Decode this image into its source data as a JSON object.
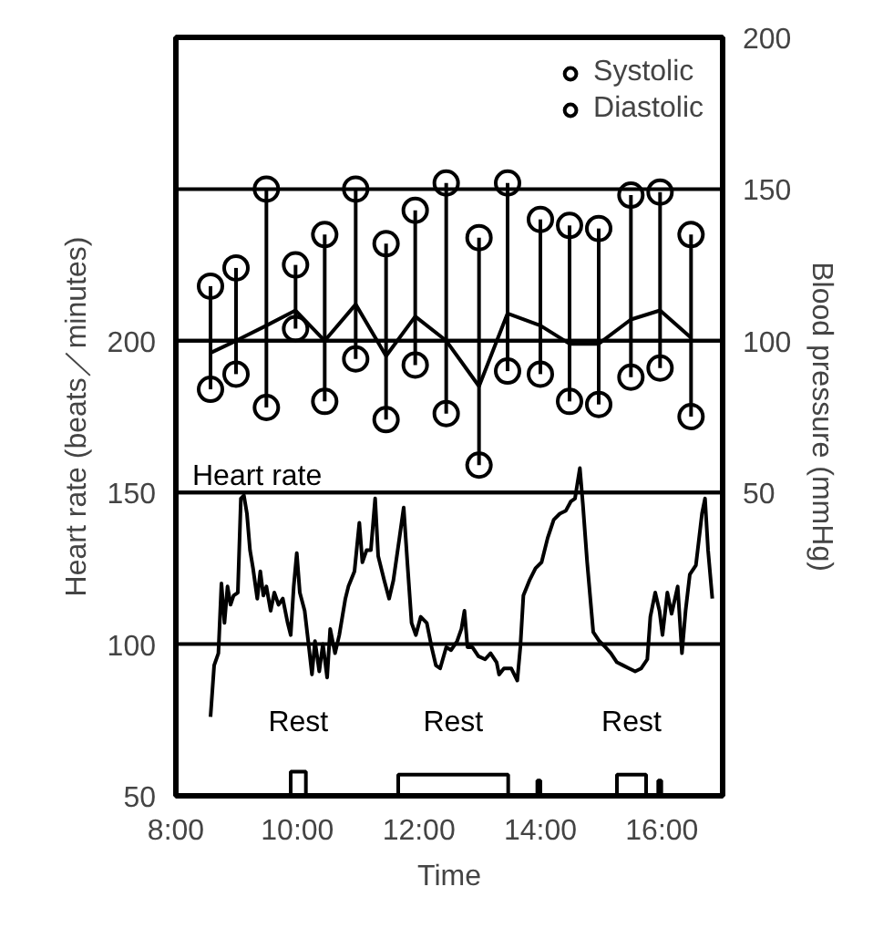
{
  "chart_data": {
    "type": "line",
    "xlabel": "Time",
    "ylabel": "Heart rate (beats／minutes)",
    "y2label": "Blood pressure (mmHg)",
    "xlim": [
      8,
      17
    ],
    "xticks": [
      {
        "value": 8,
        "label": "8:00"
      },
      {
        "value": 10,
        "label": "10:00"
      },
      {
        "value": 12,
        "label": "12:00"
      },
      {
        "value": 14,
        "label": "14:00"
      },
      {
        "value": 16,
        "label": "16:00"
      }
    ],
    "ylim": [
      50,
      300
    ],
    "yticks": [
      50,
      100,
      150,
      200
    ],
    "y2lim": [
      -50,
      200
    ],
    "y2ticks": [
      50,
      100,
      150,
      200
    ],
    "grid": "y",
    "legend": "top right",
    "annotations": [
      "Rest",
      "Rest",
      "Rest"
    ],
    "series": [
      {
        "name": "Systolic",
        "type": "scatter",
        "axis": "y2",
        "marker": "circle",
        "color": "#000000",
        "x": [
          8.57,
          8.99,
          9.49,
          9.97,
          10.45,
          10.96,
          11.46,
          11.94,
          12.45,
          12.99,
          13.46,
          14.0,
          14.48,
          14.96,
          15.49,
          15.97,
          16.48
        ],
        "values": [
          118,
          124,
          150,
          125,
          135,
          150,
          132,
          143,
          152,
          134,
          152,
          140,
          138,
          137,
          148,
          149,
          135
        ]
      },
      {
        "name": "Diastolic",
        "type": "scatter",
        "axis": "y2",
        "marker": "circle",
        "color": "#000000",
        "x": [
          8.57,
          8.99,
          9.49,
          9.97,
          10.45,
          10.96,
          11.46,
          11.94,
          12.45,
          12.99,
          13.46,
          14.0,
          14.48,
          14.96,
          15.49,
          15.97,
          16.48
        ],
        "values": [
          84,
          89,
          78,
          104,
          80,
          94,
          74,
          92,
          76,
          59,
          90,
          89,
          80,
          79,
          88,
          91,
          75
        ]
      },
      {
        "type": "line",
        "axis": "y2",
        "color": "#000000",
        "x": [
          8.57,
          8.99,
          9.49,
          9.97,
          10.45,
          10.96,
          11.46,
          11.94,
          12.45,
          12.99,
          13.46,
          14.0,
          14.48,
          14.96,
          15.49,
          15.97,
          16.48
        ],
        "values": [
          96,
          100,
          105,
          110,
          100,
          112,
          95,
          108,
          100,
          85,
          109,
          105,
          99,
          99,
          107,
          110,
          101
        ],
        "errors": [
          [
            84,
            118
          ],
          [
            89,
            124
          ],
          [
            78,
            150
          ],
          [
            104,
            125
          ],
          [
            80,
            135
          ],
          [
            94,
            150
          ],
          [
            74,
            132
          ],
          [
            92,
            143
          ],
          [
            76,
            152
          ],
          [
            59,
            134
          ],
          [
            90,
            152
          ],
          [
            89,
            140
          ],
          [
            80,
            138
          ],
          [
            79,
            137
          ],
          [
            88,
            148
          ],
          [
            91,
            149
          ],
          [
            75,
            135
          ]
        ]
      },
      {
        "name": "Heart rate",
        "color": "#000000",
        "x": [
          8.57,
          8.63,
          8.7,
          8.75,
          8.8,
          8.85,
          8.9,
          8.95,
          9.02,
          9.07,
          9.12,
          9.17,
          9.22,
          9.27,
          9.34,
          9.39,
          9.44,
          9.49,
          9.56,
          9.62,
          9.69,
          9.76,
          9.84,
          9.89,
          9.94,
          9.99,
          10.04,
          10.12,
          10.19,
          10.24,
          10.29,
          10.36,
          10.42,
          10.49,
          10.54,
          10.62,
          10.69,
          10.74,
          10.79,
          10.84,
          10.94,
          11.02,
          11.07,
          11.14,
          11.21,
          11.28,
          11.33,
          11.43,
          11.51,
          11.58,
          11.68,
          11.75,
          11.81,
          11.88,
          11.95,
          12.03,
          12.13,
          12.21,
          12.28,
          12.35,
          12.45,
          12.53,
          12.63,
          12.7,
          12.75,
          12.8,
          12.88,
          12.98,
          13.09,
          13.18,
          13.28,
          13.32,
          13.4,
          13.52,
          13.62,
          13.67,
          13.72,
          13.82,
          13.92,
          14.02,
          14.12,
          14.22,
          14.32,
          14.42,
          14.5,
          14.57,
          14.65,
          14.7,
          14.77,
          14.87,
          14.97,
          15.07,
          15.16,
          15.26,
          15.36,
          15.46,
          15.56,
          15.66,
          15.76,
          15.81,
          15.89,
          15.96,
          16.01,
          16.09,
          16.16,
          16.26,
          16.33,
          16.39,
          16.46,
          16.56,
          16.66,
          16.71,
          16.76,
          16.83
        ],
        "values": [
          76,
          93,
          97,
          120,
          107,
          119,
          113,
          116,
          117,
          148,
          149,
          143,
          131,
          125,
          115,
          124,
          116,
          119,
          111,
          117,
          113,
          115,
          107,
          103,
          119,
          130,
          117,
          111,
          99,
          90,
          101,
          91,
          100,
          89,
          105,
          97,
          103,
          109,
          115,
          119,
          124,
          140,
          127,
          131,
          131,
          148,
          129,
          121,
          115,
          121,
          135,
          145,
          127,
          107,
          103,
          109,
          107,
          99,
          93,
          92,
          99,
          98,
          101,
          105,
          111,
          99,
          99,
          96,
          95,
          97,
          94,
          90,
          92,
          92,
          88,
          99,
          116,
          121,
          125,
          127,
          135,
          141,
          143,
          144,
          147,
          148,
          158,
          146,
          127,
          104,
          101,
          99,
          97,
          94,
          93,
          92,
          91,
          92,
          95,
          109,
          117,
          111,
          103,
          117,
          110,
          119,
          97,
          111,
          123,
          126,
          143,
          148,
          131,
          115
        ]
      },
      {
        "type": "step",
        "color": "#000000",
        "x": [
          8,
          9.89,
          10.14,
          11.66,
          13.47,
          13.95,
          14.0,
          15.26,
          15.74,
          15.94,
          15.99,
          17
        ],
        "values": [
          50,
          58,
          50,
          57,
          50,
          55,
          50,
          57,
          50,
          55,
          50,
          50
        ]
      }
    ]
  }
}
